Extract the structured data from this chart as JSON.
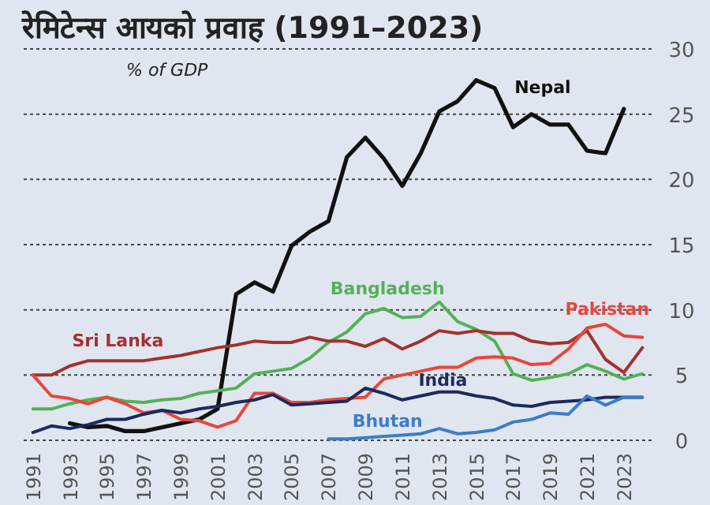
{
  "chart_data": {
    "type": "line",
    "title": "रेमिटेन्स आयको प्रवाह (1991–2023)",
    "subtitle": "% of GDP",
    "x": [
      1991,
      1992,
      1993,
      1994,
      1995,
      1996,
      1997,
      1998,
      1999,
      2000,
      2001,
      2002,
      2003,
      2004,
      2005,
      2006,
      2007,
      2008,
      2009,
      2010,
      2011,
      2012,
      2013,
      2014,
      2015,
      2016,
      2017,
      2018,
      2019,
      2020,
      2021,
      2022,
      2023,
      2024
    ],
    "xlim": [
      1990.5,
      2024.5
    ],
    "xticks": [
      1991,
      1993,
      1995,
      1997,
      1999,
      2001,
      2003,
      2005,
      2007,
      2009,
      2011,
      2013,
      2015,
      2017,
      2019,
      2021,
      2023
    ],
    "ylim": [
      0,
      30
    ],
    "yticks": [
      0,
      5,
      10,
      15,
      20,
      25,
      30
    ],
    "grid": "y",
    "line_style": "solid",
    "series": [
      {
        "name": "Nepal",
        "color": "#111111",
        "values": [
          null,
          null,
          1.3,
          1.0,
          1.1,
          0.7,
          0.7,
          1.0,
          1.3,
          1.6,
          2.4,
          11.2,
          12.1,
          11.4,
          14.9,
          16.0,
          16.8,
          21.7,
          23.2,
          21.6,
          19.5,
          22.0,
          25.2,
          26.0,
          27.6,
          27.0,
          24.0,
          25.0,
          24.2,
          24.2,
          22.2,
          22.0,
          25.4,
          null
        ]
      },
      {
        "name": "Bangladesh",
        "color": "#55b058",
        "values": [
          2.4,
          2.4,
          2.8,
          3.1,
          3.3,
          3.0,
          2.9,
          3.1,
          3.2,
          3.6,
          3.8,
          4.0,
          5.1,
          5.3,
          5.5,
          6.3,
          7.5,
          8.3,
          9.7,
          10.1,
          9.4,
          9.5,
          10.6,
          9.1,
          8.5,
          7.6,
          5.1,
          4.6,
          4.8,
          5.1,
          5.8,
          5.3,
          4.7,
          5.1
        ]
      },
      {
        "name": "Sri Lanka",
        "color": "#a3312e",
        "values": [
          5.0,
          5.0,
          5.7,
          6.1,
          6.1,
          6.1,
          6.1,
          6.3,
          6.5,
          6.8,
          7.1,
          7.3,
          7.6,
          7.5,
          7.5,
          7.9,
          7.6,
          7.6,
          7.2,
          7.8,
          7.0,
          7.6,
          8.4,
          8.2,
          8.4,
          8.2,
          8.2,
          7.6,
          7.4,
          7.5,
          8.4,
          6.2,
          5.2,
          7.1
        ]
      },
      {
        "name": "Pakistan",
        "color": "#e8463c",
        "values": [
          5.0,
          3.4,
          3.2,
          2.8,
          3.3,
          2.8,
          2.1,
          2.3,
          1.6,
          1.5,
          1.0,
          1.5,
          3.6,
          3.6,
          2.9,
          2.9,
          3.1,
          3.2,
          3.3,
          4.7,
          5.0,
          5.3,
          5.6,
          5.6,
          6.3,
          6.4,
          6.3,
          5.8,
          5.9,
          7.0,
          8.6,
          8.9,
          8.0,
          7.9
        ]
      },
      {
        "name": "India",
        "color": "#1c2a5e",
        "values": [
          0.6,
          1.1,
          0.9,
          1.2,
          1.6,
          1.6,
          2.0,
          2.3,
          2.1,
          2.4,
          2.6,
          2.9,
          3.1,
          3.5,
          2.7,
          2.8,
          2.9,
          3.0,
          4.0,
          3.6,
          3.1,
          3.4,
          3.7,
          3.7,
          3.4,
          3.2,
          2.7,
          2.6,
          2.9,
          3.0,
          3.1,
          3.3,
          3.3,
          3.3
        ]
      },
      {
        "name": "Bhutan",
        "color": "#3d7cc9",
        "values": [
          null,
          null,
          null,
          null,
          null,
          null,
          null,
          null,
          null,
          null,
          null,
          null,
          null,
          null,
          null,
          null,
          0.1,
          0.1,
          0.2,
          0.3,
          0.4,
          0.5,
          0.9,
          0.5,
          0.6,
          0.8,
          1.4,
          1.6,
          2.1,
          2.0,
          3.4,
          2.7,
          3.3,
          3.3
        ]
      }
    ]
  }
}
